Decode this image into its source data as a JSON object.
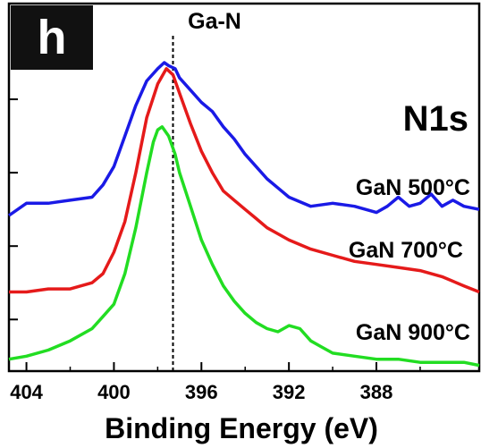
{
  "chart_data": {
    "type": "line",
    "panel_label": "h",
    "title": "N1s",
    "reference_line_label": "Ga-N",
    "reference_line_x": 397.3,
    "xlabel": "Binding Energy (eV)",
    "ylabel": "",
    "x_reversed": true,
    "xlim": [
      404.8,
      383.3
    ],
    "x_ticks": [
      404,
      400,
      396,
      392,
      388
    ],
    "ylim": [
      0,
      1
    ],
    "y_ticks": [
      0.16,
      0.4,
      0.64,
      0.88
    ],
    "grid": false,
    "legend": "inline labels on right side of each curve",
    "series": [
      {
        "name": "GaN 500°C",
        "color": "#1a1ae6",
        "x": [
          404.8,
          404,
          403,
          402,
          401,
          400.5,
          400,
          399.5,
          399,
          398.5,
          398,
          397.7,
          397.5,
          397.2,
          397,
          396.5,
          396,
          395.5,
          395,
          394.5,
          394,
          393.5,
          393,
          392.5,
          392,
          391,
          390,
          389,
          388,
          387.5,
          387,
          386.5,
          386,
          385.5,
          385,
          384.5,
          384,
          383.3
        ],
        "y": [
          0.5,
          0.54,
          0.54,
          0.55,
          0.56,
          0.6,
          0.66,
          0.76,
          0.86,
          0.94,
          0.98,
          1.0,
          0.99,
          0.98,
          0.95,
          0.91,
          0.87,
          0.84,
          0.79,
          0.75,
          0.7,
          0.66,
          0.62,
          0.59,
          0.56,
          0.53,
          0.54,
          0.53,
          0.51,
          0.53,
          0.56,
          0.53,
          0.54,
          0.57,
          0.53,
          0.55,
          0.53,
          0.52
        ]
      },
      {
        "name": "GaN 700°C",
        "color": "#e51a1a",
        "x": [
          404.8,
          404,
          403,
          402,
          401,
          400.5,
          400,
          399.5,
          399,
          398.5,
          398,
          397.6,
          397.3,
          397,
          396.5,
          396,
          395.5,
          395,
          394.5,
          394,
          393.5,
          393,
          392.5,
          392,
          391,
          390,
          389,
          388,
          387,
          386,
          385,
          384,
          383.3
        ],
        "y": [
          0.25,
          0.25,
          0.26,
          0.26,
          0.28,
          0.31,
          0.38,
          0.48,
          0.64,
          0.82,
          0.93,
          0.98,
          0.96,
          0.9,
          0.8,
          0.71,
          0.64,
          0.58,
          0.55,
          0.52,
          0.49,
          0.46,
          0.44,
          0.42,
          0.39,
          0.37,
          0.35,
          0.34,
          0.33,
          0.32,
          0.3,
          0.27,
          0.25
        ]
      },
      {
        "name": "GaN 900°C",
        "color": "#22dd22",
        "x": [
          404.8,
          404,
          403,
          402,
          401,
          400.5,
          400,
          399.5,
          399,
          398.5,
          398.2,
          398,
          397.8,
          397.5,
          397.2,
          397,
          396.5,
          396,
          395.5,
          395,
          394.5,
          394,
          393.5,
          393,
          392.5,
          392,
          391.5,
          391,
          390.5,
          390,
          389,
          388,
          387,
          386,
          385,
          384,
          383.3
        ],
        "y": [
          0.03,
          0.04,
          0.06,
          0.09,
          0.13,
          0.17,
          0.21,
          0.31,
          0.46,
          0.64,
          0.74,
          0.78,
          0.79,
          0.76,
          0.7,
          0.64,
          0.53,
          0.42,
          0.34,
          0.27,
          0.22,
          0.18,
          0.15,
          0.13,
          0.12,
          0.14,
          0.13,
          0.09,
          0.07,
          0.05,
          0.04,
          0.03,
          0.03,
          0.02,
          0.02,
          0.02,
          0.01
        ]
      }
    ]
  }
}
